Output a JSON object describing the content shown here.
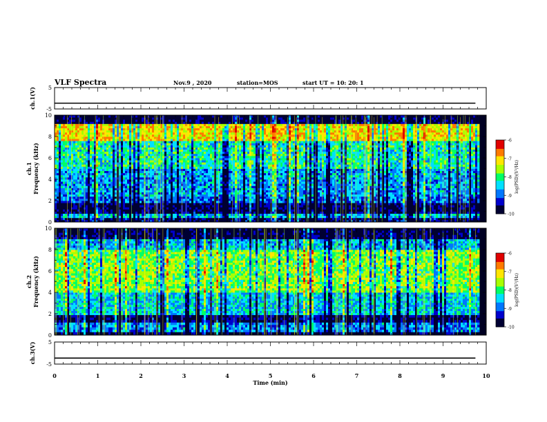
{
  "header": {
    "title": "VLF Spectra",
    "date": "Nov.9 , 2020",
    "station": "station=MOS",
    "start": "start UT = 10: 20: 1"
  },
  "chart_data": [
    {
      "type": "line",
      "panel": "ch1-waveform",
      "ylabel": "ch.1(V)",
      "ylim": [
        -5,
        5
      ],
      "yticks": [
        "5",
        "-5"
      ],
      "series": [
        {
          "values_constant": -2.3
        }
      ]
    },
    {
      "type": "heatmap",
      "panel": "ch1-spectrogram",
      "ylabel": "ch.1\nFrequency (kHz)",
      "ylim": [
        0,
        10
      ],
      "yticks": [
        "0",
        "2",
        "4",
        "6",
        "8",
        "10"
      ],
      "bands": [
        {
          "fmin": 0.0,
          "fmax": 0.4,
          "level": -9.6
        },
        {
          "fmin": 0.4,
          "fmax": 0.8,
          "level": -8.6
        },
        {
          "fmin": 0.8,
          "fmax": 1.8,
          "level": -9.7
        },
        {
          "fmin": 1.8,
          "fmax": 2.4,
          "level": -9.0
        },
        {
          "fmin": 2.4,
          "fmax": 5.0,
          "level": -8.7
        },
        {
          "fmin": 5.0,
          "fmax": 7.6,
          "level": -8.2
        },
        {
          "fmin": 7.6,
          "fmax": 9.2,
          "level": -7.1
        },
        {
          "fmin": 9.2,
          "fmax": 10.0,
          "level": -9.8
        }
      ],
      "colorbar": {
        "label": "log(PSD)(V²/Hz)",
        "range": [
          -10,
          -6
        ],
        "ticks": [
          "-6",
          "-7",
          "-8",
          "-9",
          "-10"
        ]
      }
    },
    {
      "type": "heatmap",
      "panel": "ch2-spectrogram",
      "ylabel": "ch.2\nFrequency (kHz)",
      "ylim": [
        0,
        10
      ],
      "yticks": [
        "0",
        "2",
        "4",
        "6",
        "8",
        "10"
      ],
      "bands": [
        {
          "fmin": 0.0,
          "fmax": 0.3,
          "level": -9.8
        },
        {
          "fmin": 0.3,
          "fmax": 1.2,
          "level": -8.8
        },
        {
          "fmin": 1.2,
          "fmax": 1.9,
          "level": -9.7
        },
        {
          "fmin": 1.9,
          "fmax": 4.0,
          "level": -8.5
        },
        {
          "fmin": 4.0,
          "fmax": 8.0,
          "level": -7.7
        },
        {
          "fmin": 8.0,
          "fmax": 9.0,
          "level": -8.6
        },
        {
          "fmin": 9.0,
          "fmax": 10.0,
          "level": -9.8
        }
      ],
      "colorbar": {
        "label": "log(PSD)(V²/Hz)",
        "range": [
          -10,
          -6
        ],
        "ticks": [
          "-6",
          "-7",
          "-8",
          "-9",
          "-10"
        ]
      }
    },
    {
      "type": "line",
      "panel": "ch3-waveform",
      "ylabel": "ch.3(V)",
      "ylim": [
        -5,
        5
      ],
      "yticks": [
        "5",
        "-5"
      ],
      "series": [
        {
          "values_constant": -2.3
        }
      ]
    }
  ],
  "xaxis": {
    "label": "Time (min)",
    "range": [
      0,
      10
    ],
    "ticks": [
      "0",
      "1",
      "2",
      "3",
      "4",
      "5",
      "6",
      "7",
      "8",
      "9",
      "10"
    ],
    "data_end_min": 9.83
  },
  "colormap": [
    "#000033",
    "#0000cc",
    "#0077ff",
    "#00e0ff",
    "#00ff66",
    "#a8ff00",
    "#ffe600",
    "#ff7a00",
    "#e00000",
    "#ffffff"
  ]
}
